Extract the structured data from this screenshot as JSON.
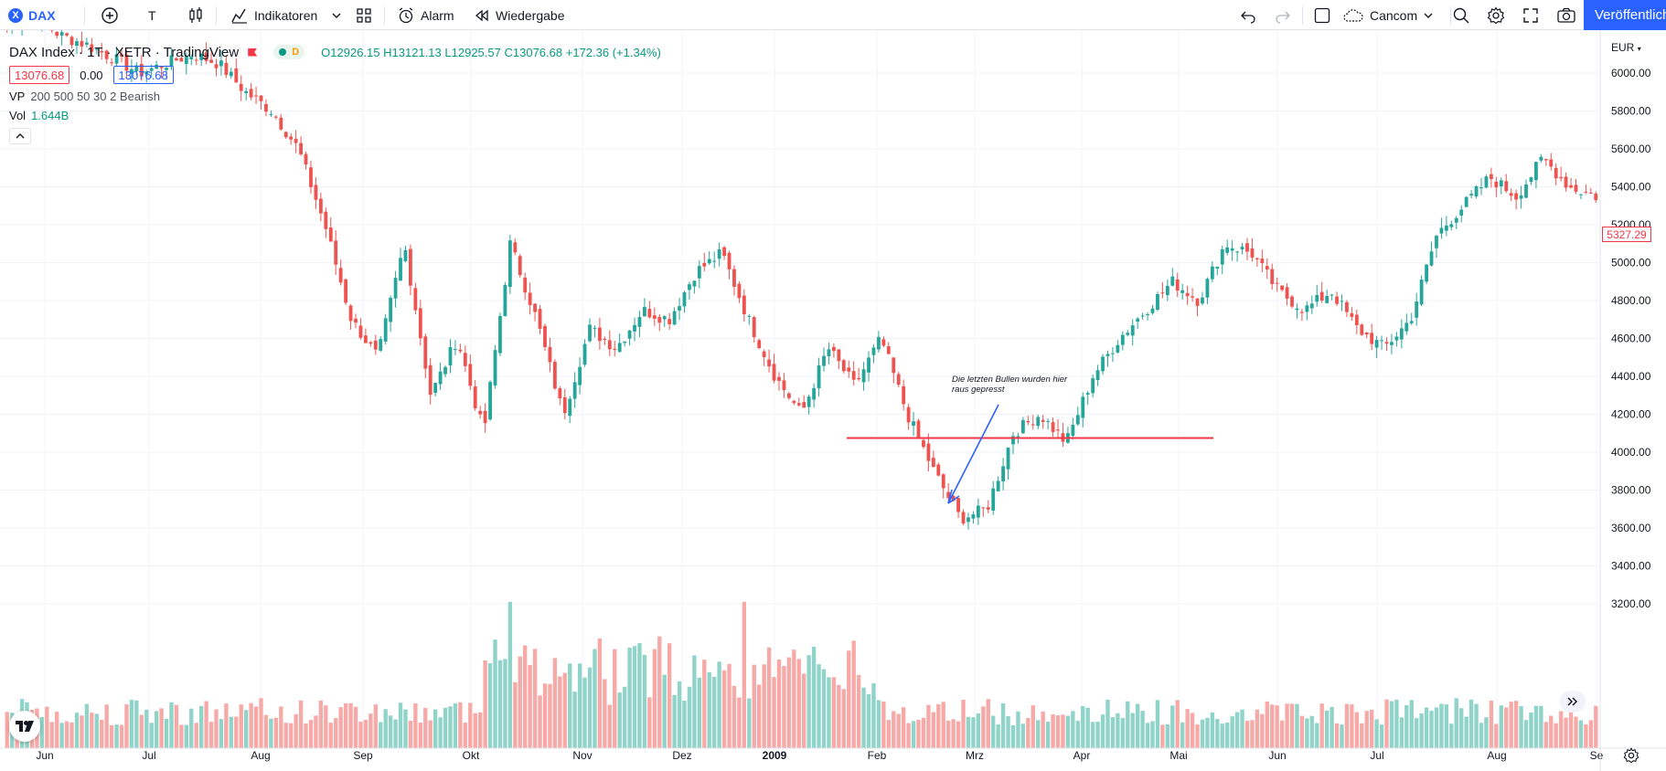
{
  "toolbar": {
    "symbol": "DAX",
    "symbol_badge": "X",
    "interval": "T",
    "indicators_label": "Indikatoren",
    "alarm_label": "Alarm",
    "replay_label": "Wiedergabe",
    "layout_name": "Cancom",
    "publish_label": "Veröffentlichen"
  },
  "legend": {
    "title": "DAX Index · 1T · XETR · TradingView",
    "pill_letter": "D",
    "o_key": "O",
    "o_val": "12926.15",
    "h_key": "H",
    "h_val": "13121.13",
    "l_key": "L",
    "l_val": "12925.57",
    "c_key": "C",
    "c_val": "13076.68",
    "change": "+172.36 (+1.34%)",
    "bid": "13076.68",
    "spread": "0.00",
    "ask": "13076.68",
    "vp_label": "VP",
    "vp_params": "200 500 50 30 2 Bearish",
    "vol_label": "Vol",
    "vol_value": "1.644B"
  },
  "axis": {
    "currency": "EUR",
    "last_price": "5327.29",
    "price_ticks": [
      "6000.00",
      "5800.00",
      "5600.00",
      "5400.00",
      "5200.00",
      "5000.00",
      "4800.00",
      "4600.00",
      "4400.00",
      "4200.00",
      "4000.00",
      "3800.00",
      "3600.00",
      "3400.00",
      "3200.00"
    ],
    "time_ticks": [
      "Jun",
      "Jul",
      "Aug",
      "Sep",
      "Okt",
      "Nov",
      "Dez",
      "2009",
      "Feb",
      "Mrz",
      "Apr",
      "Mai",
      "Jun",
      "Jul",
      "Aug",
      "Se"
    ]
  },
  "annotation": {
    "line1": "Die letzten Bullen wurden hier",
    "line2": "raus gepresst",
    "support_level": 4075
  },
  "colors": {
    "up": "#26a69a",
    "down": "#ef5350",
    "vol_up": "#8fd3c9",
    "vol_down": "#f7a9a7",
    "accent": "#2962ff",
    "arrow": "#2962ff",
    "support": "#f23645"
  },
  "chart_data": {
    "type": "candlestick",
    "title": "DAX Index · 1T · XETR",
    "ylim": [
      3100,
      6150
    ],
    "y_ticks": [
      6000,
      5800,
      5600,
      5400,
      5200,
      5000,
      4800,
      4600,
      4400,
      4200,
      4000,
      3800,
      3600,
      3400,
      3200
    ],
    "x_labels": [
      "Jun",
      "Jul",
      "Aug",
      "Sep",
      "Okt",
      "Nov",
      "Dez",
      "2009",
      "Feb",
      "Mrz",
      "Apr",
      "Mai",
      "Jun",
      "Jul",
      "Aug",
      "Se"
    ],
    "close_path": [
      6250,
      6300,
      6200,
      6150,
      6080,
      6000,
      6050,
      6100,
      6050,
      5900,
      5800,
      5600,
      5200,
      4700,
      4500,
      5100,
      4300,
      4600,
      4100,
      5100,
      4700,
      4200,
      4650,
      4550,
      4750,
      4700,
      4950,
      5050,
      4700,
      4400,
      4200,
      4550,
      4350,
      4600,
      4200,
      3900,
      3650,
      3700,
      4100,
      4200,
      4050,
      4400,
      4600,
      4750,
      4900,
      4800,
      5100,
      5050,
      4850,
      4750,
      4850,
      4650,
      4550,
      4700,
      5150,
      5300,
      5450,
      5350,
      5550,
      5400,
      5350
    ],
    "volume_relative": "higher volume in Sep–Okt 2008 and Jan 2009"
  }
}
